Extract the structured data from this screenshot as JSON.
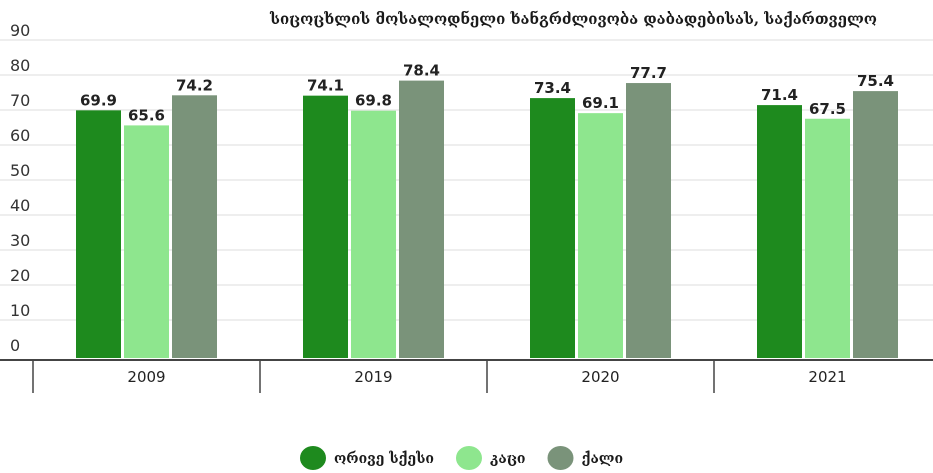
{
  "chart_data": {
    "type": "bar",
    "title": "სიცოცხლის მოსალოდნელი ხანგრძლივობა დაბადებისას, საქართველო",
    "xlabel": "",
    "ylabel": "",
    "categories": [
      "2009",
      "2019",
      "2020",
      "2021"
    ],
    "series": [
      {
        "name": "ორივე სქესი",
        "values": [
          69.9,
          74.1,
          73.4,
          71.4
        ],
        "color": "#1e8a1e"
      },
      {
        "name": "კაცი",
        "values": [
          65.6,
          69.8,
          69.1,
          67.5
        ],
        "color": "#8ee68e"
      },
      {
        "name": "ქალი",
        "values": [
          74.2,
          78.4,
          77.7,
          75.4
        ],
        "color": "#7a937a"
      }
    ],
    "ylim": [
      0,
      90
    ],
    "yticks": [
      0,
      10,
      20,
      30,
      40,
      50,
      60,
      70,
      80,
      90
    ],
    "grid": true,
    "legend_position": "bottom-center"
  }
}
